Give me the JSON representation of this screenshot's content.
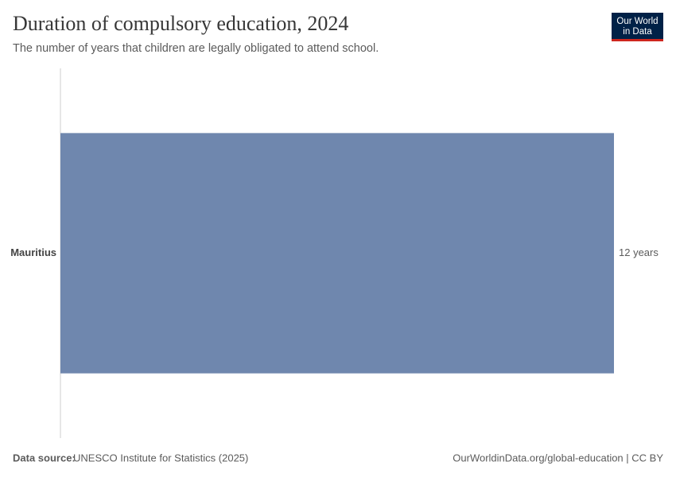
{
  "chart_data": {
    "type": "bar",
    "orientation": "horizontal",
    "title": "Duration of compulsory education, 2024",
    "subtitle": "The number of years that children are legally obligated to attend school.",
    "categories": [
      "Mauritius"
    ],
    "values": [
      12
    ],
    "value_labels": [
      "12 years"
    ],
    "color": "#6f87ae",
    "source_label": "Data source:",
    "source": "UNESCO Institute for Statistics (2025)",
    "credit": "OurWorldinData.org/global-education | CC BY",
    "logo": [
      "Our World",
      "in Data"
    ]
  }
}
